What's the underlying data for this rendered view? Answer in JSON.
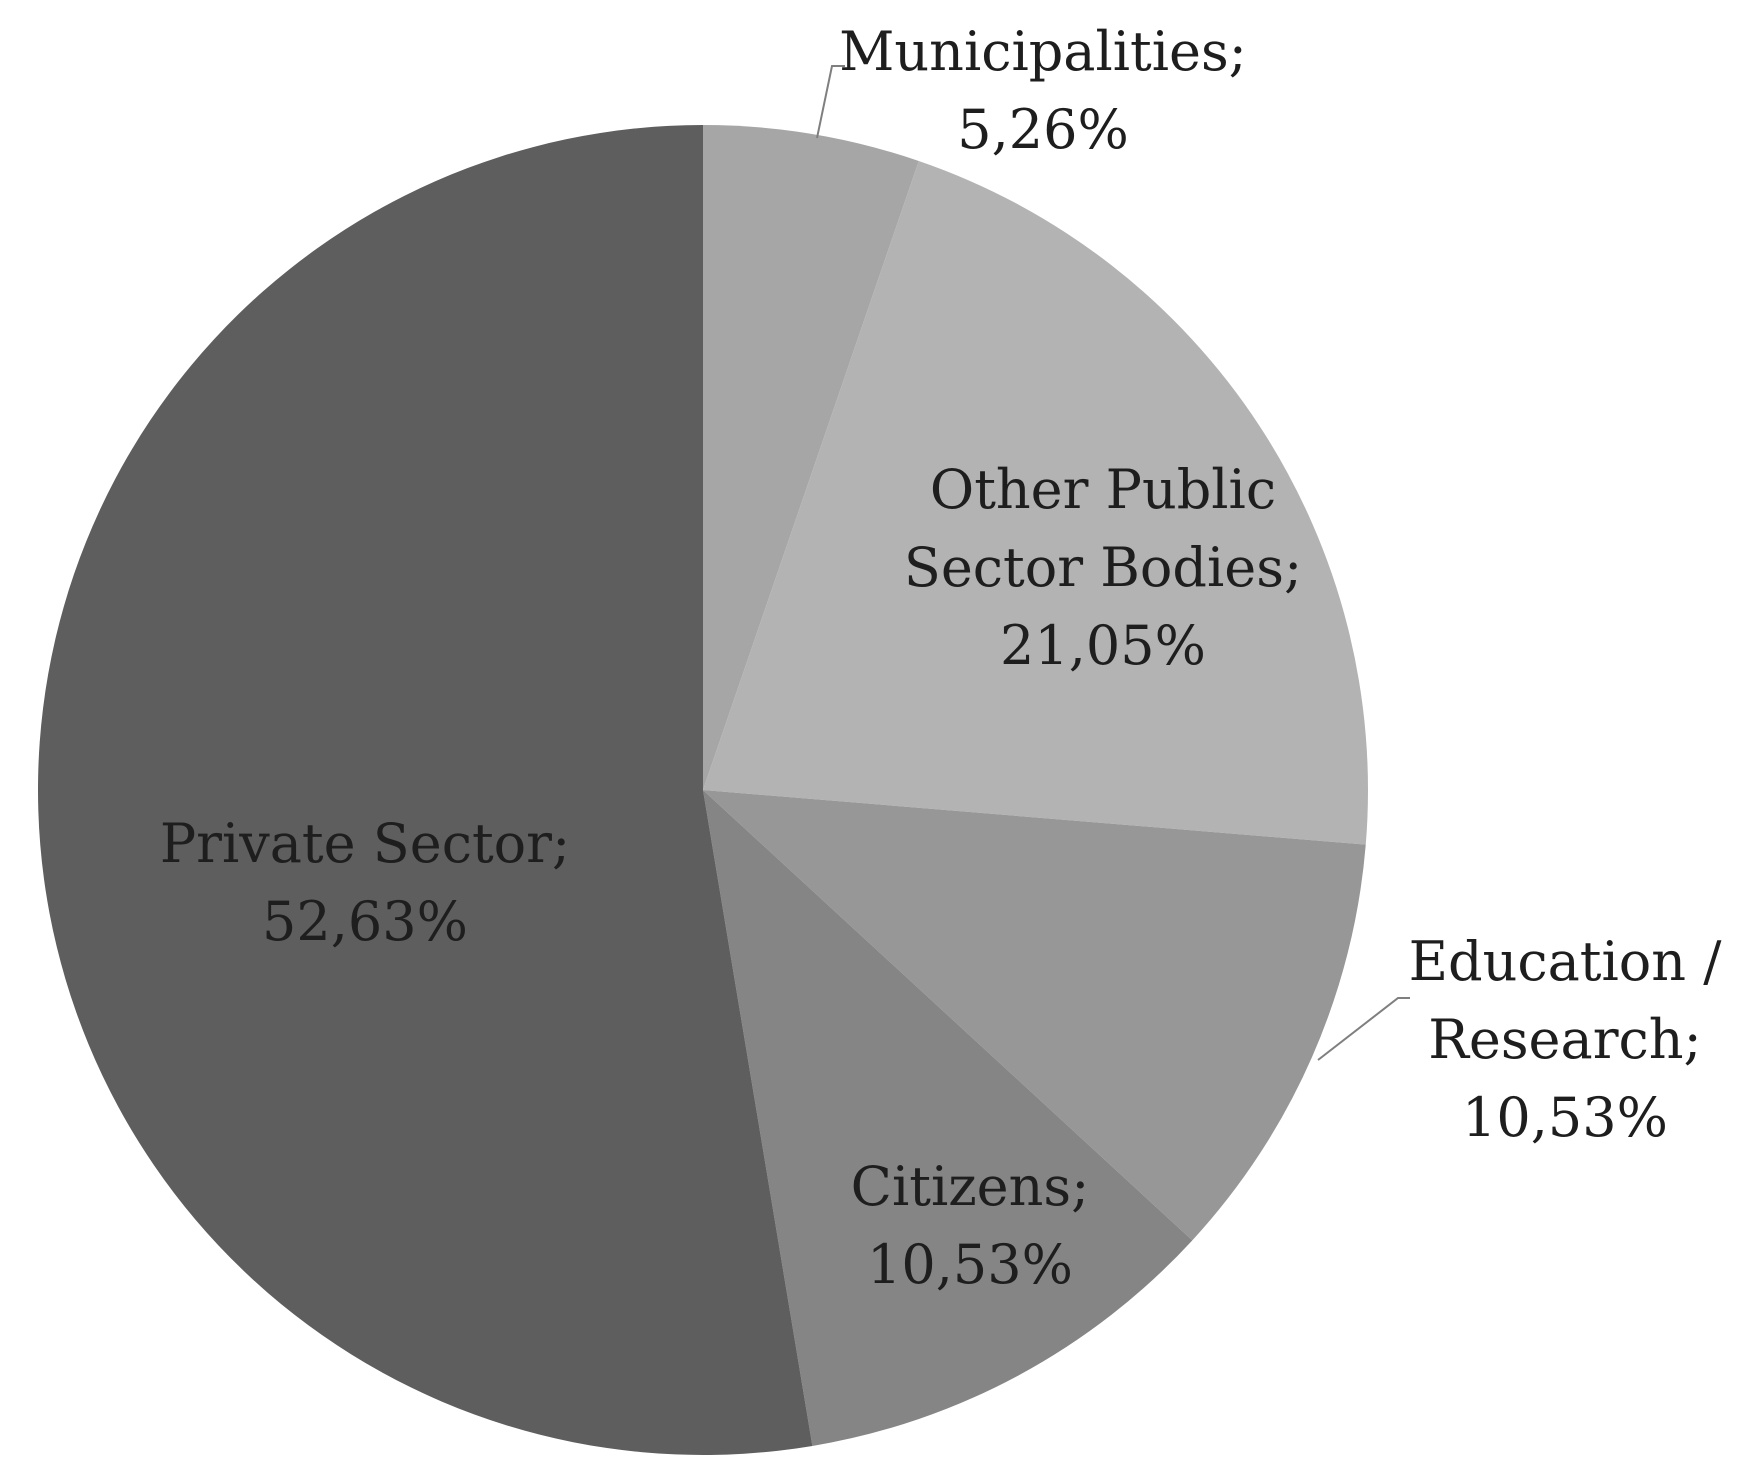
{
  "chart_data": {
    "type": "pie",
    "title": "",
    "start_angle_deg": 0,
    "direction": "clockwise",
    "slices": [
      {
        "name": "Municipalities",
        "value": 5.26,
        "label": [
          "Municipalities;",
          "5,26%"
        ],
        "color": "#a6a6a6",
        "label_outside": true
      },
      {
        "name": "Other Public Sector Bodies",
        "value": 21.05,
        "label": [
          "Other Public",
          "Sector Bodies;",
          "21,05%"
        ],
        "color": "#b3b3b3",
        "label_outside": false
      },
      {
        "name": "Education / Research",
        "value": 10.53,
        "label": [
          "Education /",
          "Research;",
          "10,53%"
        ],
        "color": "#979797",
        "label_outside": true
      },
      {
        "name": "Citizens",
        "value": 10.53,
        "label": [
          "Citizens;",
          "10,53%"
        ],
        "color": "#858585",
        "label_outside": false
      },
      {
        "name": "Private Sector",
        "value": 52.63,
        "label": [
          "Private Sector;",
          "52,63%"
        ],
        "color": "#5e5e5e",
        "label_outside": false
      }
    ]
  }
}
